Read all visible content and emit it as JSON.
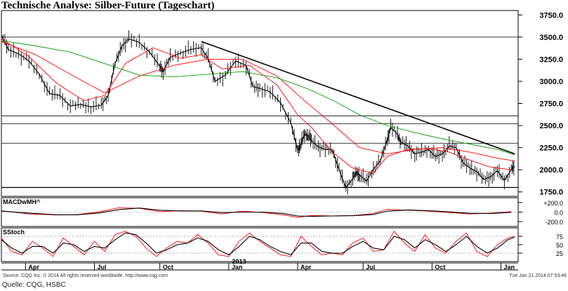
{
  "title": "Technische Analyse: Silber-Future (Tageschart)",
  "footer": {
    "source_note": "Source: CQG Inc. © 2014 All rights reserved worldwide. http://www.cqg.com",
    "timestamp": "Tue Jan 21 2014 07:53:46",
    "quelle": "Quelle: CQG, HSBC"
  },
  "colors": {
    "price": "#000000",
    "ma_fast": "#ff0000",
    "ma_slow": "#00a000",
    "grid": "#000000",
    "trendline": "#000000"
  },
  "chart_data": [
    {
      "type": "line",
      "name": "price-panel",
      "ylim": [
        1700,
        3800
      ],
      "yticks": [
        1750,
        2000,
        2250,
        2500,
        2750,
        3000,
        3250,
        3500,
        3750
      ],
      "ytick_labels": [
        "1750.0",
        "2000.0",
        "2250.0",
        "2500.0",
        "2750.0",
        "3000.0",
        "3250.0",
        "3500.0",
        "3750.0"
      ],
      "horizontal_levels": [
        3500,
        2610,
        2520,
        2300,
        1800
      ],
      "trendline": [
        [
          58,
          3450
        ],
        [
          149,
          2180
        ]
      ],
      "t_range": [
        0,
        150
      ],
      "series": [
        {
          "role": "price",
          "t": [
            0,
            2,
            5,
            8,
            11,
            14,
            17,
            20,
            23,
            26,
            29,
            31,
            33,
            35,
            37,
            40,
            43,
            46,
            47,
            49,
            52,
            55,
            58,
            60,
            62,
            65,
            68,
            71,
            73,
            75,
            78,
            81,
            84,
            86,
            87,
            88,
            89,
            90,
            92,
            94,
            96,
            98,
            100,
            102,
            103,
            104,
            106,
            108,
            110,
            112,
            113,
            115,
            116,
            118,
            120,
            122,
            124,
            126,
            128,
            130,
            132,
            134,
            136,
            138,
            140,
            142,
            144,
            146,
            148,
            149
          ],
          "values": [
            3520,
            3360,
            3310,
            3230,
            3080,
            2860,
            2840,
            2720,
            2740,
            2710,
            2730,
            2840,
            3200,
            3400,
            3480,
            3440,
            3330,
            3170,
            3110,
            3270,
            3320,
            3360,
            3380,
            3260,
            3000,
            3070,
            3230,
            3180,
            2940,
            2920,
            2880,
            2760,
            2530,
            2220,
            2300,
            2400,
            2390,
            2330,
            2260,
            2230,
            2230,
            2000,
            1800,
            1900,
            1970,
            1940,
            1870,
            2010,
            2100,
            2340,
            2480,
            2400,
            2310,
            2270,
            2180,
            2200,
            2230,
            2150,
            2180,
            2270,
            2250,
            2080,
            2020,
            1980,
            1890,
            1920,
            1990,
            1880,
            2000,
            2040
          ]
        },
        {
          "role": "ma_fast",
          "t": [
            0,
            8,
            16,
            24,
            30,
            36,
            44,
            52,
            58,
            64,
            72,
            80,
            86,
            90,
            96,
            102,
            108,
            112,
            118,
            124,
            130,
            136,
            142,
            148
          ],
          "values": [
            3480,
            3280,
            2980,
            2780,
            2840,
            3200,
            3380,
            3260,
            3300,
            3140,
            3180,
            2960,
            2620,
            2480,
            2200,
            2020,
            1960,
            2150,
            2230,
            2240,
            2200,
            2110,
            2030,
            2000
          ]
        },
        {
          "role": "ma_fast",
          "t": [
            0,
            10,
            20,
            30,
            40,
            50,
            60,
            70,
            80,
            88,
            96,
            104,
            112,
            120,
            128,
            136,
            144,
            149
          ],
          "values": [
            3450,
            3300,
            3080,
            2870,
            3060,
            3180,
            3250,
            3250,
            3060,
            2780,
            2520,
            2250,
            2180,
            2230,
            2250,
            2200,
            2130,
            2100
          ]
        },
        {
          "role": "ma_slow",
          "t": [
            0,
            10,
            20,
            30,
            40,
            50,
            60,
            70,
            80,
            88,
            96,
            104,
            112,
            120,
            128,
            136,
            144,
            149
          ],
          "values": [
            3460,
            3400,
            3330,
            3200,
            3070,
            3050,
            3080,
            3110,
            3040,
            2930,
            2790,
            2620,
            2500,
            2420,
            2350,
            2290,
            2230,
            2170
          ]
        }
      ]
    },
    {
      "type": "line",
      "name": "macd-panel",
      "label": "MACDwMH^",
      "ylim": [
        -300,
        300
      ],
      "yticks": [
        200,
        0,
        -200
      ],
      "ytick_labels": [
        "+200.0",
        "0.0",
        "-200.0"
      ],
      "t_range": [
        0,
        150
      ],
      "series": [
        {
          "role": "ma_fast",
          "t": [
            0,
            8,
            16,
            22,
            28,
            34,
            40,
            46,
            52,
            58,
            64,
            70,
            76,
            82,
            86,
            90,
            96,
            102,
            108,
            112,
            118,
            124,
            130,
            136,
            142,
            148
          ],
          "values": [
            30,
            -40,
            -60,
            -50,
            0,
            90,
            80,
            10,
            30,
            20,
            -40,
            20,
            -10,
            -60,
            -110,
            -70,
            -80,
            -70,
            -30,
            60,
            40,
            20,
            -10,
            -40,
            -20,
            10
          ]
        },
        {
          "role": "price",
          "t": [
            0,
            8,
            16,
            22,
            28,
            34,
            40,
            46,
            52,
            58,
            64,
            70,
            76,
            82,
            86,
            90,
            96,
            102,
            108,
            112,
            118,
            124,
            130,
            136,
            142,
            148
          ],
          "values": [
            20,
            -20,
            -55,
            -55,
            -20,
            50,
            85,
            40,
            25,
            25,
            -10,
            0,
            0,
            -30,
            -80,
            -90,
            -80,
            -75,
            -50,
            20,
            45,
            30,
            5,
            -25,
            -30,
            -5
          ]
        }
      ]
    },
    {
      "type": "line",
      "name": "stoch-panel",
      "label": "SStoch",
      "ylim": [
        0,
        100
      ],
      "yticks": [
        75,
        50,
        25
      ],
      "ytick_labels": [
        "75",
        "50",
        "25"
      ],
      "levels": [
        75,
        25
      ],
      "t_range": [
        0,
        150
      ],
      "series": [
        {
          "role": "ma_fast",
          "t": [
            0,
            3,
            6,
            9,
            12,
            15,
            18,
            21,
            24,
            27,
            30,
            33,
            36,
            39,
            42,
            45,
            48,
            51,
            54,
            57,
            60,
            63,
            66,
            69,
            72,
            75,
            78,
            81,
            84,
            87,
            90,
            93,
            96,
            99,
            102,
            105,
            108,
            111,
            114,
            117,
            120,
            123,
            126,
            129,
            132,
            135,
            138,
            141,
            144,
            147,
            149
          ],
          "values": [
            70,
            30,
            20,
            60,
            40,
            15,
            70,
            45,
            20,
            60,
            30,
            80,
            90,
            75,
            40,
            15,
            40,
            60,
            55,
            80,
            55,
            20,
            15,
            60,
            85,
            60,
            40,
            20,
            15,
            75,
            45,
            20,
            25,
            20,
            55,
            70,
            30,
            35,
            90,
            55,
            30,
            80,
            40,
            25,
            60,
            85,
            30,
            15,
            50,
            70,
            75
          ]
        },
        {
          "role": "price",
          "t": [
            0,
            3,
            6,
            9,
            12,
            15,
            18,
            21,
            24,
            27,
            30,
            33,
            36,
            39,
            42,
            45,
            48,
            51,
            54,
            57,
            60,
            63,
            66,
            69,
            72,
            75,
            78,
            81,
            84,
            87,
            90,
            93,
            96,
            99,
            102,
            105,
            108,
            111,
            114,
            117,
            120,
            123,
            126,
            129,
            132,
            135,
            138,
            141,
            144,
            147,
            149
          ],
          "values": [
            65,
            40,
            25,
            45,
            45,
            25,
            55,
            50,
            30,
            45,
            40,
            65,
            85,
            80,
            55,
            25,
            35,
            50,
            55,
            70,
            60,
            35,
            20,
            45,
            75,
            65,
            45,
            30,
            20,
            55,
            55,
            30,
            25,
            25,
            45,
            60,
            40,
            35,
            75,
            65,
            40,
            65,
            50,
            30,
            50,
            75,
            45,
            25,
            40,
            65,
            72
          ]
        }
      ]
    }
  ],
  "x_axis": {
    "ticks": [
      {
        "t": 7,
        "label": "Apr"
      },
      {
        "t": 27,
        "label": "Jul"
      },
      {
        "t": 46,
        "label": "Oct"
      },
      {
        "t": 66,
        "label": "Jan"
      },
      {
        "t": 86,
        "label": "Apr"
      },
      {
        "t": 105,
        "label": "Jul"
      },
      {
        "t": 125,
        "label": "Oct"
      },
      {
        "t": 145,
        "label": "Jan"
      }
    ],
    "year_label": {
      "t": 69,
      "label": "2013"
    }
  }
}
